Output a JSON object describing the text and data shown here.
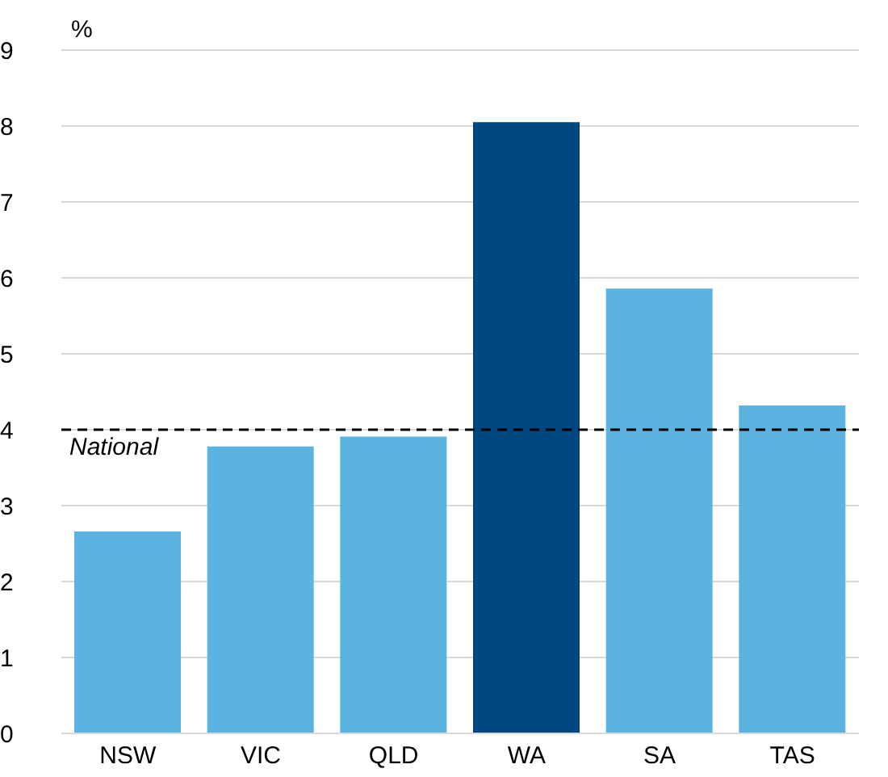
{
  "chart_data": {
    "type": "bar",
    "ylabel": "%",
    "categories": [
      "NSW",
      "VIC",
      "QLD",
      "WA",
      "SA",
      "TAS"
    ],
    "values": [
      2.66,
      3.78,
      3.91,
      8.05,
      5.86,
      4.32
    ],
    "colors": [
      "#5bb4df",
      "#5bb4df",
      "#5bb4df",
      "#004782",
      "#5bb4df",
      "#5bb4df"
    ],
    "ylim": [
      0,
      9
    ],
    "yticks": [
      0,
      1,
      2,
      3,
      4,
      5,
      6,
      7,
      8,
      9
    ],
    "grid": "y",
    "ref_lines": [
      {
        "axis": "y",
        "value": 4,
        "label": "National",
        "color": "#000000",
        "line_style": "dashed"
      }
    ]
  }
}
